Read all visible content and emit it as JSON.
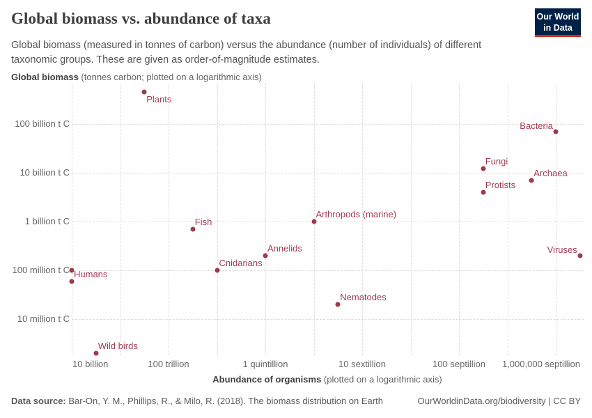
{
  "header": {
    "title": "Global biomass vs. abundance of taxa",
    "subtitle": "Global biomass (measured in tonnes of carbon) versus the abundance (number of individuals) of different taxonomic groups. These are given as order-of-magnitude estimates.",
    "logo": {
      "line1": "Our World",
      "line2": "in Data"
    }
  },
  "axes": {
    "y_title_bold": "Global biomass",
    "y_title_rest": " (tonnes carbon; plotted on a logarithmic axis)",
    "x_title_bold": "Abundance of organisms",
    "x_title_rest": " (plotted on a logarithmic axis)"
  },
  "colors": {
    "point": "#9e3a4a",
    "point_label": "#a63a50",
    "logo_bg": "#002147",
    "logo_accent": "#d42b21",
    "grid": "#dcdcdc"
  },
  "chart_data": {
    "type": "scatter",
    "title": "Global biomass vs. abundance of taxa",
    "xlabel": "Abundance of organisms",
    "ylabel": "Global biomass (tonnes carbon)",
    "x_scale": "log",
    "y_scale": "log",
    "x_range": [
      10000000000.0,
      1.5e+31
    ],
    "y_range": [
      1500000.0,
      600000000000.0
    ],
    "grid": "dashed",
    "legend": "none",
    "x_ticks": [
      {
        "value": 10000000000.0,
        "label": "10 billion",
        "align": "left"
      },
      {
        "value": 100000000000000.0,
        "label": "100 trillion",
        "align": "center"
      },
      {
        "value": 1e+18,
        "label": "1 quintillion",
        "align": "center"
      },
      {
        "value": 1e+22,
        "label": "10 sextillion",
        "align": "center"
      },
      {
        "value": 1e+26,
        "label": "100 septillion",
        "align": "center"
      },
      {
        "value": 1e+30,
        "label": "1,000,000 septillion",
        "align": "right"
      }
    ],
    "x_minor_gridlines": [
      1000000000000.0,
      1e+16,
      1e+20,
      1e+24,
      1e+28
    ],
    "y_ticks": [
      {
        "value": 100000000000.0,
        "label": "100 billion t C"
      },
      {
        "value": 10000000000.0,
        "label": "10 billion t C"
      },
      {
        "value": 1000000000.0,
        "label": "1 billion t C"
      },
      {
        "value": 100000000.0,
        "label": "100 million t C"
      },
      {
        "value": 10000000.0,
        "label": "10 million t C"
      }
    ],
    "points": [
      {
        "label": "Plants",
        "abundance": 10000000000000.0,
        "biomass_t_c": 450000000000.0,
        "label_pos": "below-right"
      },
      {
        "label": "Bacteria",
        "abundance": 1e+30,
        "biomass_t_c": 70000000000.0,
        "label_pos": "above-left"
      },
      {
        "label": "Fungi",
        "abundance": 1e+27,
        "biomass_t_c": 12000000000.0,
        "label_pos": "above-right"
      },
      {
        "label": "Archaea",
        "abundance": 1e+29,
        "biomass_t_c": 7000000000.0,
        "label_pos": "above-right"
      },
      {
        "label": "Protists",
        "abundance": 1e+27,
        "biomass_t_c": 4000000000.0,
        "label_pos": "above-right"
      },
      {
        "label": "Arthropods (marine)",
        "abundance": 1e+20,
        "biomass_t_c": 1000000000.0,
        "label_pos": "above-right"
      },
      {
        "label": "Fish",
        "abundance": 1000000000000000.0,
        "biomass_t_c": 700000000.0,
        "label_pos": "above-right"
      },
      {
        "label": "Annelids",
        "abundance": 1e+18,
        "biomass_t_c": 200000000.0,
        "label_pos": "above-right"
      },
      {
        "label": "Viruses",
        "abundance": 1e+31,
        "biomass_t_c": 200000000.0,
        "label_pos": "above-left"
      },
      {
        "label": "Cnidarians",
        "abundance": 1e+16,
        "biomass_t_c": 100000000.0,
        "label_pos": "above-right"
      },
      {
        "label": "",
        "abundance": 10000000000.0,
        "biomass_t_c": 100000000.0,
        "label_pos": "none"
      },
      {
        "label": "Humans",
        "abundance": 10000000000.0,
        "biomass_t_c": 60000000.0,
        "label_pos": "above-right"
      },
      {
        "label": "Nematodes",
        "abundance": 1e+21,
        "biomass_t_c": 20000000.0,
        "label_pos": "above-right"
      },
      {
        "label": "Wild birds",
        "abundance": 100000000000.0,
        "biomass_t_c": 2000000.0,
        "label_pos": "above-right"
      }
    ]
  },
  "footer": {
    "source_label": "Data source:",
    "source_text": " Bar-On, Y. M., Phillips, R., & Milo, R. (2018). The biomass distribution on Earth",
    "right_text": "OurWorldinData.org/biodiversity | CC BY"
  }
}
